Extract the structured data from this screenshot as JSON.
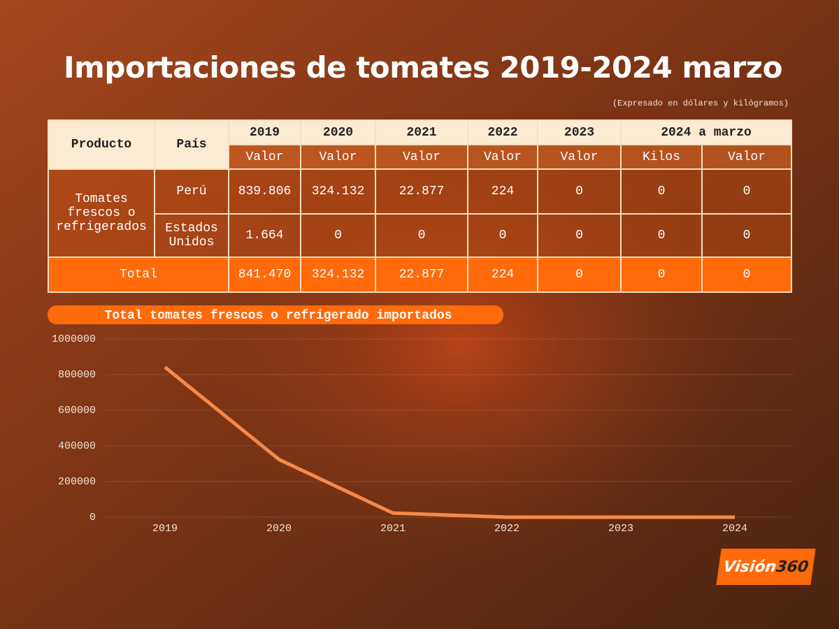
{
  "title": "Importaciones de tomates 2019-2024 marzo",
  "subtitle": "(Expresado en dólares y kilógramos)",
  "table": {
    "header": [
      [
        "Producto",
        "País",
        "2019",
        "2020",
        "2021",
        "2022",
        "2023",
        "2024 a marzo"
      ],
      [
        "Valor",
        "Valor",
        "Valor",
        "Valor",
        "Valor",
        "Kilos",
        "Valor"
      ]
    ],
    "product": "Tomates frescos o refrigerados",
    "rows": [
      {
        "country": "Perú",
        "values": [
          "839.806",
          "324.132",
          "22.877",
          "224",
          "0",
          "0",
          "0"
        ]
      },
      {
        "country": "Estados Unidos",
        "values": [
          "1.664",
          "0",
          "0",
          "0",
          "0",
          "0",
          "0"
        ]
      }
    ],
    "total": {
      "label": "Total",
      "values": [
        "841.470",
        "324.132",
        "22.877",
        "224",
        "0",
        "0",
        "0"
      ]
    }
  },
  "chart_data": {
    "type": "line",
    "title": "Total tomates frescos o refrigerado importados",
    "categories": [
      "2019",
      "2020",
      "2021",
      "2022",
      "2023",
      "2024"
    ],
    "values": [
      841470,
      324132,
      22877,
      224,
      0,
      0
    ],
    "color": "#f5894a",
    "ylim": [
      0,
      1000000
    ],
    "yticks": [
      0,
      200000,
      400000,
      600000,
      800000,
      1000000
    ],
    "grid": true
  },
  "logo": {
    "text": "Visión",
    "number": "360"
  }
}
